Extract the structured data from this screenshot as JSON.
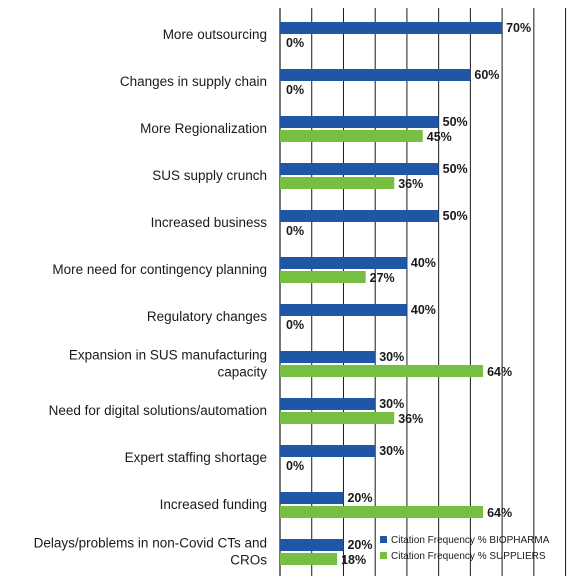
{
  "chart_data": {
    "type": "bar",
    "orientation": "horizontal",
    "categories": [
      [
        "More outsourcing"
      ],
      [
        "Changes in supply chain"
      ],
      [
        "More Regionalization"
      ],
      [
        "SUS supply crunch"
      ],
      [
        "Increased business"
      ],
      [
        "More need for contingency planning"
      ],
      [
        "Regulatory changes"
      ],
      [
        "Expansion in SUS manufacturing",
        "capacity"
      ],
      [
        "Need for digital solutions/automation"
      ],
      [
        "Expert staffing shortage"
      ],
      [
        "Increased funding"
      ],
      [
        "Delays/problems in non-Covid CTs and",
        "CROs"
      ]
    ],
    "series": [
      {
        "name": "Citation Frequency % BIOPHARMA",
        "color": "#1f56a6",
        "values": [
          70,
          60,
          50,
          50,
          50,
          40,
          40,
          30,
          30,
          30,
          20,
          20
        ],
        "labels": [
          "70%",
          "60%",
          "50%",
          "50%",
          "50%",
          "40%",
          "40%",
          "30%",
          "30%",
          "30%",
          "20%",
          "20%"
        ]
      },
      {
        "name": "Citation Frequency % SUPPLIERS",
        "color": "#77bf43",
        "values": [
          0,
          0,
          45,
          36,
          0,
          27,
          0,
          64,
          36,
          0,
          64,
          18
        ],
        "labels": [
          "0%",
          "0%",
          "45%",
          "36%",
          "0%",
          "27%",
          "0%",
          "64%",
          "36%",
          "0%",
          "64%",
          "18%"
        ]
      }
    ],
    "xlim": [
      0,
      90
    ],
    "x_gridline_step": 10,
    "grid": true,
    "legend_position": "bottom-right"
  }
}
